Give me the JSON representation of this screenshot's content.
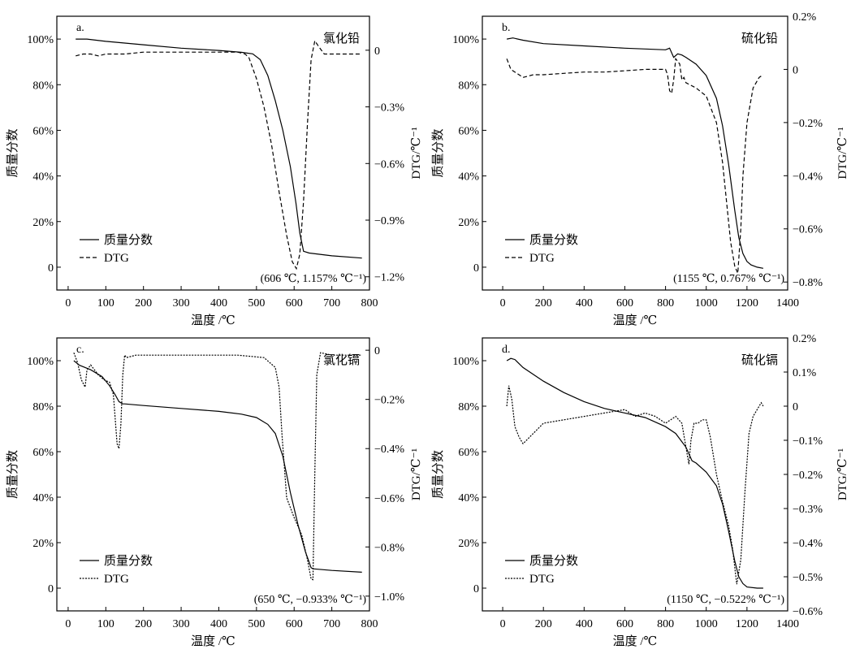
{
  "chart_data": [
    {
      "id": "a",
      "type": "line",
      "panel_label": "a.",
      "title": "氯化铅",
      "xlabel": "温度 /℃",
      "ylabel": "质量分数",
      "y2label": "DTG/℃⁻¹",
      "xlim": [
        -30,
        800
      ],
      "ylim": [
        -10,
        110
      ],
      "y2lim": [
        -1.27,
        0.18
      ],
      "xticks": [
        "0",
        "100",
        "200",
        "300",
        "400",
        "500",
        "600",
        "700",
        "800"
      ],
      "yticks": [
        "0",
        "20%",
        "40%",
        "60%",
        "80%",
        "100%"
      ],
      "y2ticks": [
        "0",
        "−0.3%",
        "−0.6%",
        "−0.9%",
        "−1.2%"
      ],
      "legend": [
        "质量分数",
        "DTG"
      ],
      "annotation": "(606 ℃, 1.157% ℃⁻¹)",
      "series": [
        {
          "name": "质量分数",
          "style": "solid",
          "axis": "left",
          "x": [
            20,
            50,
            100,
            200,
            300,
            400,
            460,
            490,
            510,
            530,
            550,
            570,
            590,
            605,
            615,
            625,
            640,
            660,
            700,
            780
          ],
          "y": [
            100,
            100,
            99,
            97.5,
            96,
            95,
            94.2,
            93.5,
            91,
            84,
            73,
            60,
            44,
            28,
            15,
            7,
            6.2,
            5.8,
            5,
            4
          ]
        },
        {
          "name": "DTG",
          "style": "dashed",
          "axis": "right",
          "x": [
            20,
            40,
            60,
            80,
            100,
            150,
            200,
            250,
            300,
            350,
            400,
            450,
            470,
            480,
            500,
            520,
            540,
            560,
            580,
            595,
            606,
            615,
            625,
            635,
            645,
            655,
            665,
            680,
            700,
            750,
            780
          ],
          "y": [
            -0.03,
            -0.02,
            -0.02,
            -0.03,
            -0.02,
            -0.02,
            -0.01,
            -0.01,
            -0.01,
            -0.01,
            -0.01,
            -0.01,
            -0.02,
            -0.04,
            -0.15,
            -0.3,
            -0.5,
            -0.75,
            -0.98,
            -1.12,
            -1.157,
            -1.08,
            -0.8,
            -0.4,
            -0.05,
            0.05,
            0.02,
            -0.02,
            -0.02,
            -0.02,
            -0.02
          ]
        }
      ]
    },
    {
      "id": "b",
      "type": "line",
      "panel_label": "b.",
      "title": "硫化铅",
      "xlabel": "温度 /℃",
      "ylabel": "质量分数",
      "y2label": "DTG/℃⁻¹",
      "xlim": [
        -100,
        1400
      ],
      "ylim": [
        -10,
        110
      ],
      "y2lim": [
        -0.83,
        0.2
      ],
      "xticks": [
        "0",
        "200",
        "400",
        "600",
        "800",
        "1000",
        "1200",
        "1400"
      ],
      "yticks": [
        "0",
        "20%",
        "40%",
        "60%",
        "80%",
        "100%"
      ],
      "y2ticks": [
        "0.2%",
        "0",
        "−0.2%",
        "−0.4%",
        "−0.6%",
        "−0.8%"
      ],
      "legend": [
        "质量分数",
        "DTG"
      ],
      "annotation": "(1155 ℃, 0.767% ℃⁻¹)",
      "series": [
        {
          "name": "质量分数",
          "style": "solid",
          "axis": "left",
          "x": [
            20,
            50,
            100,
            200,
            400,
            600,
            800,
            820,
            840,
            860,
            880,
            900,
            950,
            1000,
            1050,
            1080,
            1110,
            1140,
            1160,
            1180,
            1200,
            1220,
            1250,
            1280
          ],
          "y": [
            100,
            100.5,
            99.5,
            98,
            97,
            96,
            95.3,
            96,
            92,
            93.5,
            93,
            92,
            89,
            84,
            74,
            62,
            45,
            25,
            13,
            6,
            2.5,
            1,
            0,
            -0.5
          ]
        },
        {
          "name": "DTG",
          "style": "dashed",
          "axis": "right",
          "x": [
            20,
            40,
            60,
            100,
            150,
            200,
            300,
            400,
            500,
            600,
            700,
            800,
            810,
            820,
            830,
            840,
            850,
            870,
            880,
            890,
            900,
            950,
            1000,
            1050,
            1080,
            1100,
            1120,
            1140,
            1155,
            1170,
            1180,
            1200,
            1230,
            1260,
            1280
          ],
          "y": [
            0.04,
            0,
            -0.01,
            -0.03,
            -0.02,
            -0.02,
            -0.015,
            -0.01,
            -0.01,
            -0.005,
            0,
            0,
            -0.02,
            -0.08,
            -0.09,
            -0.04,
            0.04,
            0.02,
            -0.04,
            -0.03,
            -0.05,
            -0.07,
            -0.1,
            -0.2,
            -0.35,
            -0.5,
            -0.65,
            -0.74,
            -0.767,
            -0.6,
            -0.4,
            -0.2,
            -0.07,
            -0.03,
            -0.02
          ]
        }
      ]
    },
    {
      "id": "c",
      "type": "line",
      "panel_label": "c.",
      "title": "氯化镉",
      "xlabel": "温度 /℃",
      "ylabel": "质量分数",
      "y2label": "DTG/℃⁻¹",
      "xlim": [
        -30,
        800
      ],
      "ylim": [
        -10,
        110
      ],
      "y2lim": [
        -1.06,
        0.05
      ],
      "xticks": [
        "0",
        "100",
        "200",
        "300",
        "400",
        "500",
        "600",
        "700",
        "800"
      ],
      "yticks": [
        "0",
        "20%",
        "40%",
        "60%",
        "80%",
        "100%"
      ],
      "y2ticks": [
        "0",
        "−0.2%",
        "−0.4%",
        "−0.6%",
        "−0.8%",
        "−1.0%"
      ],
      "legend": [
        "质量分数",
        "DTG"
      ],
      "annotation": "(650 ℃, −0.933% ℃⁻¹)",
      "series": [
        {
          "name": "质量分数",
          "style": "solid",
          "axis": "left",
          "x": [
            15,
            30,
            60,
            90,
            110,
            125,
            135,
            140,
            145,
            150,
            200,
            300,
            400,
            460,
            500,
            530,
            550,
            570,
            590,
            610,
            630,
            645,
            650,
            700,
            780
          ],
          "y": [
            100,
            98,
            96,
            93,
            89,
            85,
            82,
            81.5,
            81,
            81,
            80.3,
            79,
            77.7,
            76.5,
            75,
            72,
            68,
            58,
            42,
            28,
            16,
            9,
            8.5,
            7.8,
            7
          ]
        },
        {
          "name": "DTG",
          "style": "dotted",
          "axis": "right",
          "x": [
            15,
            25,
            35,
            45,
            50,
            60,
            70,
            80,
            95,
            110,
            120,
            130,
            135,
            140,
            145,
            150,
            155,
            180,
            250,
            350,
            450,
            520,
            550,
            560,
            568,
            580,
            600,
            620,
            635,
            645,
            650,
            655,
            660,
            670,
            700,
            780
          ],
          "y": [
            -0.01,
            -0.05,
            -0.12,
            -0.15,
            -0.08,
            -0.06,
            -0.08,
            -0.1,
            -0.12,
            -0.13,
            -0.18,
            -0.38,
            -0.4,
            -0.3,
            -0.1,
            -0.02,
            -0.03,
            -0.02,
            -0.02,
            -0.02,
            -0.02,
            -0.03,
            -0.07,
            -0.15,
            -0.35,
            -0.6,
            -0.68,
            -0.75,
            -0.85,
            -0.93,
            -0.933,
            -0.5,
            -0.1,
            -0.01,
            -0.02,
            -0.02
          ]
        }
      ]
    },
    {
      "id": "d",
      "type": "line",
      "panel_label": "d.",
      "title": "硫化镉",
      "xlabel": "温度 /℃",
      "ylabel": "质量分数",
      "y2label": "DTG/℃⁻¹",
      "xlim": [
        -100,
        1400
      ],
      "ylim": [
        -10,
        110
      ],
      "y2lim": [
        -0.6,
        0.2
      ],
      "xticks": [
        "0",
        "200",
        "400",
        "600",
        "800",
        "1000",
        "1200",
        "1400"
      ],
      "yticks": [
        "0",
        "20%",
        "40%",
        "60%",
        "80%",
        "100%"
      ],
      "y2ticks": [
        "0.2%",
        "0.1%",
        "0",
        "−0.1%",
        "−0.2%",
        "−0.3%",
        "−0.4%",
        "−0.5%",
        "−0.6%"
      ],
      "legend": [
        "质量分数",
        "DTG"
      ],
      "annotation": "(1150 ℃, −0.522% ℃⁻¹)",
      "series": [
        {
          "name": "质量分数",
          "style": "solid",
          "axis": "left",
          "x": [
            20,
            40,
            60,
            100,
            200,
            300,
            400,
            500,
            600,
            700,
            800,
            850,
            900,
            930,
            950,
            1000,
            1050,
            1080,
            1110,
            1140,
            1160,
            1180,
            1200,
            1250,
            1280
          ],
          "y": [
            100,
            101,
            100.5,
            97,
            91,
            86,
            82,
            79,
            77,
            75,
            71,
            68,
            62,
            56,
            55,
            51,
            45,
            37,
            25,
            12,
            5,
            2,
            0.5,
            0,
            0
          ]
        },
        {
          "name": "DTG",
          "style": "dotted",
          "axis": "right",
          "x": [
            20,
            30,
            45,
            60,
            80,
            100,
            150,
            200,
            300,
            400,
            500,
            600,
            650,
            700,
            750,
            800,
            850,
            880,
            900,
            915,
            925,
            940,
            960,
            980,
            1000,
            1020,
            1050,
            1080,
            1110,
            1130,
            1150,
            1170,
            1190,
            1210,
            1230,
            1250,
            1270,
            1280
          ],
          "y": [
            0,
            0.06,
            0.02,
            -0.06,
            -0.09,
            -0.11,
            -0.08,
            -0.05,
            -0.04,
            -0.03,
            -0.02,
            -0.01,
            -0.03,
            -0.02,
            -0.03,
            -0.05,
            -0.03,
            -0.05,
            -0.12,
            -0.17,
            -0.1,
            -0.05,
            -0.05,
            -0.04,
            -0.04,
            -0.09,
            -0.2,
            -0.28,
            -0.35,
            -0.42,
            -0.522,
            -0.45,
            -0.25,
            -0.08,
            -0.03,
            -0.01,
            0.01,
            0
          ]
        }
      ]
    }
  ]
}
